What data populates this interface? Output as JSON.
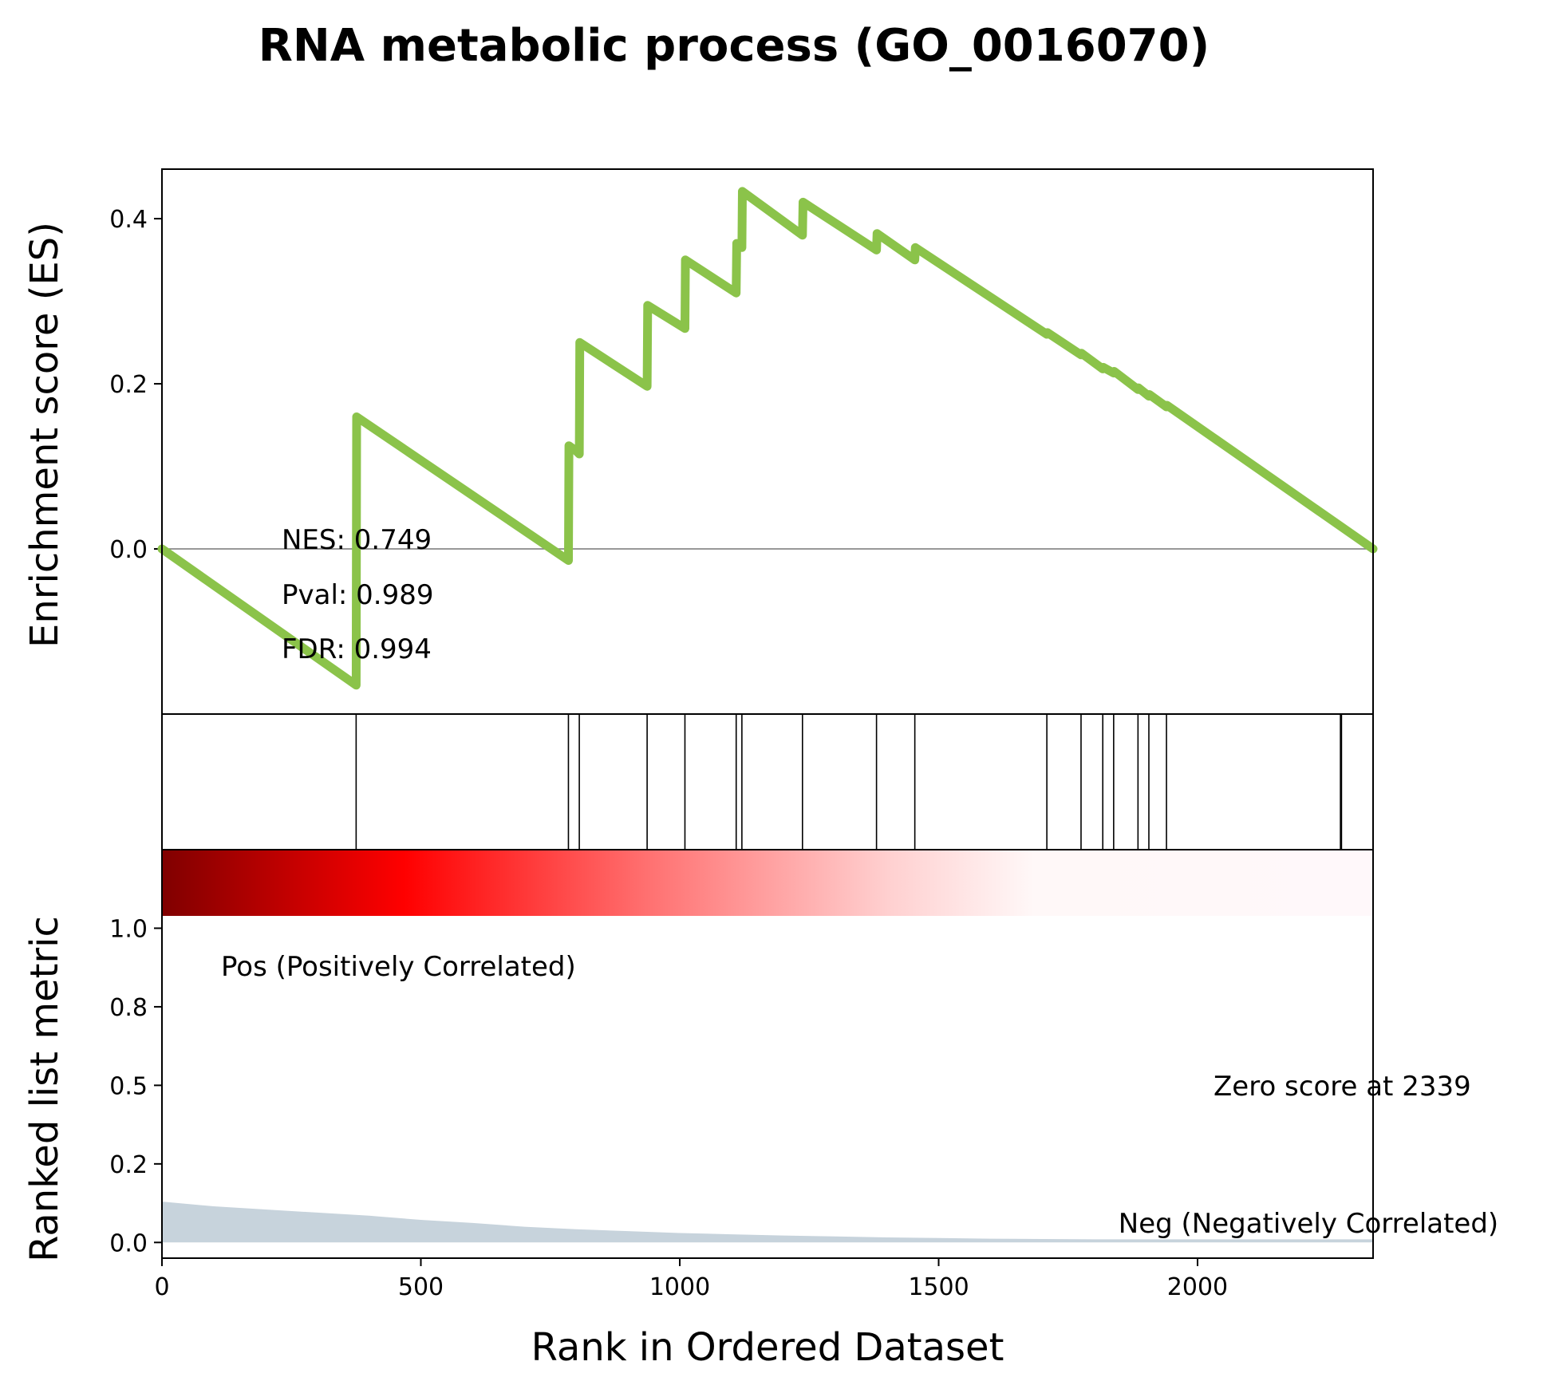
{
  "chart_data": {
    "type": "line",
    "title": "RNA metabolic process (GO_0016070)",
    "es_panel": {
      "ylabel": "Enrichment score (ES)",
      "ylim": [
        -0.2,
        0.46
      ],
      "yticks": [
        0.0,
        0.2,
        0.4
      ],
      "ytick_labels": [
        "0.0",
        "0.2",
        "0.4"
      ],
      "zero_line": true,
      "stats": [
        "NES: 0.749",
        "Pval: 0.989",
        "FDR: 0.994"
      ],
      "line_color": "#8bc34a",
      "series": [
        {
          "x": [
            0,
            375,
            376,
            785,
            786,
            797,
            798,
            806,
            807,
            937,
            938,
            1010,
            1011,
            1109,
            1110,
            1120,
            1121,
            1237,
            1238,
            1380,
            1381,
            1454,
            1455,
            1709,
            1710,
            1775,
            1776,
            1817,
            1818,
            1838,
            1839,
            1885,
            1886,
            1906,
            1907,
            1940,
            1941,
            2339
          ],
          "y": [
            0.0,
            -0.165,
            0.16,
            -0.014,
            0.125,
            0.12,
            0.12,
            0.115,
            0.25,
            0.197,
            0.295,
            0.267,
            0.35,
            0.31,
            0.37,
            0.365,
            0.433,
            0.38,
            0.42,
            0.362,
            0.382,
            0.35,
            0.365,
            0.26,
            0.262,
            0.235,
            0.237,
            0.218,
            0.22,
            0.213,
            0.215,
            0.193,
            0.195,
            0.185,
            0.187,
            0.172,
            0.174,
            0.0
          ]
        }
      ]
    },
    "hits": [
      375,
      785,
      806,
      937,
      1010,
      1109,
      1120,
      1237,
      1380,
      1454,
      1709,
      1775,
      1817,
      1838,
      1885,
      1906,
      1940,
      2276,
      2278
    ],
    "ranked_panel": {
      "ylabel": "Ranked list metric",
      "ylim": [
        -0.05,
        1.25
      ],
      "yticks": [
        0.0,
        0.25,
        0.5,
        0.75,
        1.0
      ],
      "ytick_labels": [
        "0.0",
        "0.2",
        "0.5",
        "0.8",
        "1.0"
      ],
      "pos_label": "Pos (Positively Correlated)",
      "neg_label": "Neg (Negatively Correlated)",
      "zero_label": "Zero score at 2339",
      "pos_color": "#ff0000",
      "neg_color": "#0000ff",
      "fill_color": "#c7d3dc",
      "metric": {
        "x": [
          0,
          100,
          200,
          300,
          400,
          500,
          600,
          700,
          800,
          900,
          1000,
          1100,
          1200,
          1300,
          1400,
          1500,
          1600,
          1700,
          1800,
          2339
        ],
        "y": [
          0.13,
          0.115,
          0.105,
          0.095,
          0.085,
          0.072,
          0.062,
          0.05,
          0.042,
          0.036,
          0.03,
          0.026,
          0.022,
          0.019,
          0.016,
          0.014,
          0.012,
          0.011,
          0.01,
          0.01
        ]
      }
    },
    "colorbar": {
      "stops": [
        "#800000",
        "#ff0000",
        "#ff6666",
        "#ffc8c8",
        "#fff8f8",
        "#fff8fa"
      ]
    },
    "x_axis": {
      "xlabel": "Rank in Ordered Dataset",
      "xlim": [
        0,
        2339
      ],
      "xticks": [
        0,
        500,
        1000,
        1500,
        2000
      ],
      "xtick_labels": [
        "0",
        "500",
        "1000",
        "1500",
        "2000"
      ]
    }
  }
}
